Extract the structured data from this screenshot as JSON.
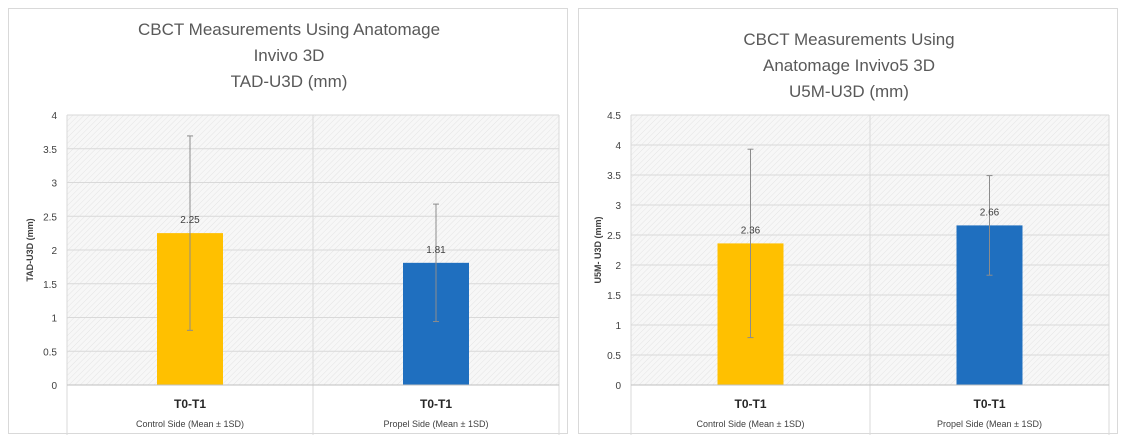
{
  "chart_data": [
    {
      "type": "bar",
      "title_lines": [
        "CBCT Measurements Using Anatomage",
        "Invivo 3D",
        "TAD-U3D (mm)"
      ],
      "ylabel": "TAD-U3D (mm)",
      "ylim": [
        0,
        4
      ],
      "yticks": [
        "0",
        "0.5",
        "1",
        "1.5",
        "2",
        "2.5",
        "3",
        "3.5",
        "4"
      ],
      "categories": [
        "T0-T1",
        "T0-T1"
      ],
      "subcategories": [
        "Control Side (Mean ± 1SD)",
        "Propel Side (Mean ± 1SD)"
      ],
      "values": [
        2.25,
        1.81
      ],
      "data_labels": [
        "2.25",
        "1.81"
      ],
      "error": [
        1.44,
        0.87
      ],
      "colors": [
        "#FFC000",
        "#1F6FBF"
      ],
      "grid": true
    },
    {
      "type": "bar",
      "title_lines": [
        "CBCT Measurements Using",
        "Anatomage Invivo5 3D",
        "U5M-U3D (mm)"
      ],
      "ylabel": "U5M- U3D (mm)",
      "ylim": [
        0,
        4.5
      ],
      "yticks": [
        "0",
        "0.5",
        "1",
        "1.5",
        "2",
        "2.5",
        "3",
        "3.5",
        "4",
        "4.5"
      ],
      "categories": [
        "T0-T1",
        "T0-T1"
      ],
      "subcategories": [
        "Control Side (Mean ± 1SD)",
        "Propel Side (Mean ± 1SD)"
      ],
      "values": [
        2.36,
        2.66
      ],
      "data_labels": [
        "2.36",
        "2.66"
      ],
      "error": [
        1.57,
        0.83
      ],
      "colors": [
        "#FFC000",
        "#1F6FBF"
      ],
      "grid": true
    }
  ]
}
